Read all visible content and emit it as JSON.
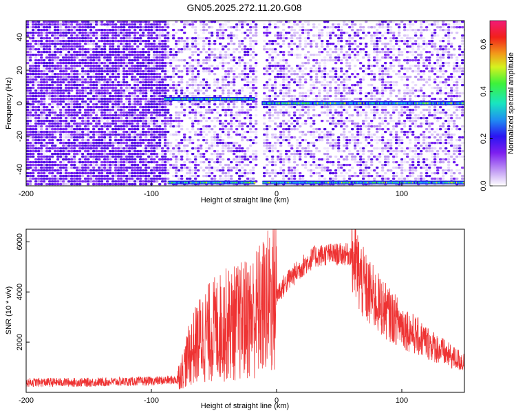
{
  "chart_data": [
    {
      "type": "heatmap",
      "title": "GN05.2025.272.11.20.G08",
      "xlabel": "Height of straight line (km)",
      "ylabel": "Frequency (Hz)",
      "xlim": [
        -200,
        150
      ],
      "ylim": [
        -50,
        50
      ],
      "x_ticks": [
        -200,
        -100,
        0,
        100
      ],
      "y_ticks": [
        -40,
        -20,
        0,
        20,
        40
      ],
      "colorbar": {
        "label": "Normalized spectral amplitude",
        "range": [
          0.0,
          0.7
        ],
        "ticks": [
          "0.0",
          "0.2",
          "0.4",
          "0.6"
        ]
      },
      "features": {
        "signal_band_hz": 0,
        "lower_band_hz": -48,
        "signal_start_km": -90,
        "data_gap_km": -15
      }
    },
    {
      "type": "line",
      "xlabel": "Height of straight line (km)",
      "ylabel": "SNR (10 * v/v)",
      "xlim": [
        -200,
        150
      ],
      "ylim": [
        0,
        6500
      ],
      "x_ticks": [
        -200,
        -100,
        0,
        100
      ],
      "y_ticks": [
        2000,
        4000,
        6000
      ],
      "series": [
        {
          "name": "SNR",
          "color": "#ee3333",
          "x": [
            -200,
            -150,
            -100,
            -80,
            -75,
            -70,
            -60,
            -50,
            -40,
            -30,
            -20,
            -10,
            0,
            10,
            20,
            30,
            40,
            50,
            60,
            70,
            80,
            90,
            100,
            110,
            120,
            130,
            140,
            150
          ],
          "values": [
            400,
            400,
            450,
            500,
            900,
            1500,
            2200,
            2500,
            2700,
            2800,
            3000,
            3400,
            3900,
            4500,
            5000,
            5400,
            5500,
            5500,
            5500,
            4200,
            3600,
            3100,
            2700,
            2300,
            2000,
            1700,
            1400,
            1200
          ]
        }
      ]
    }
  ],
  "colors": {
    "line": "#ee3333"
  }
}
